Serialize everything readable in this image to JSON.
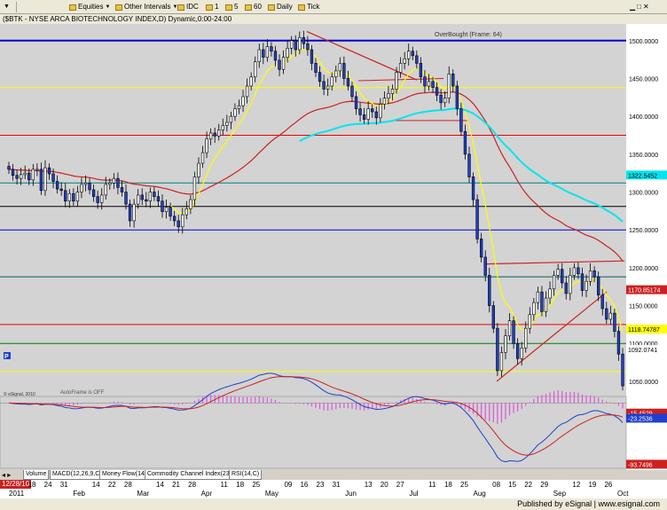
{
  "toolbar": {
    "equities": "Equities",
    "intervals": "Other Intervals",
    "idc": "IDC",
    "i1": "1",
    "i5": "5",
    "i60": "60",
    "daily": "Daily",
    "tick": "Tick"
  },
  "chart_title": "($BTK - NYSE ARCA BIOTECHNOLOGY INDEX,D) Dynamic,0:00-24:00",
  "overbought_label": "OverBought (Frame: 64)",
  "autoframe_label": "AutoFrame is OFF",
  "copyright": "© eSignal, 2010",
  "status": {
    "published": "Published by eSignal | www.esignal.com"
  },
  "tabs": [
    "Volume",
    "MACD(12,26,9,C)",
    "Money Flow(14)",
    "Commodity Channel Index(23,C)",
    "RSI(14,C)"
  ],
  "date_box": "12/28/10",
  "colors": {
    "background": "#d3d3d3",
    "candle_up": "#ffffff",
    "candle_down": "#1f3fcc",
    "ema_red": "#cc2020",
    "ema_yellow": "#ffff00",
    "ema_cyan": "#00e5ee",
    "macd_line": "#1f3fcc",
    "signal_line": "#cc2020",
    "hist": "#dd55dd"
  },
  "chart_data": [
    {
      "type": "candlestick",
      "title": "($BTK - NYSE ARCA BIOTECHNOLOGY INDEX,D) Dynamic,0:00-24:00",
      "ylim": [
        1030,
        1522
      ],
      "y_ticks": [
        1050,
        1100,
        1150,
        1200,
        1250,
        1300,
        1350,
        1400,
        1450,
        1500
      ],
      "tick_labels": [
        "1050.0000",
        "1100.0000",
        "1150.0000",
        "1200.0000",
        "1250.0000",
        "1300.0000",
        "1350.0000",
        "1400.0000",
        "1450.0000",
        "1500.0000"
      ],
      "horizontal_levels": [
        {
          "value": 1500,
          "color": "#0000cc"
        },
        {
          "value": 1438,
          "color": "#ffff00"
        },
        {
          "value": 1375,
          "color": "#ee0000"
        },
        {
          "value": 1312,
          "color": "#008080"
        },
        {
          "value": 1281,
          "color": "#000000"
        },
        {
          "value": 1250,
          "color": "#0000cc"
        },
        {
          "value": 1188,
          "color": "#006060"
        },
        {
          "value": 1125,
          "color": "#ee0000"
        },
        {
          "value": 1100,
          "color": "#008000"
        },
        {
          "value": 1063,
          "color": "#ffff00"
        }
      ],
      "axis_boxes": [
        {
          "label": "1322.5452",
          "value": 1322.5,
          "color": "#00e5ee"
        },
        {
          "label": "1170.85174",
          "value": 1171,
          "color": "#cc2020"
        },
        {
          "label": "1118.74787",
          "value": 1119,
          "color": "#ffff00"
        },
        {
          "label": "1092.0741",
          "value": 1092,
          "color": "#ffffff"
        }
      ],
      "x_categories": [
        "2011",
        "18",
        "24",
        "31",
        "Feb",
        "14",
        "22",
        "28",
        "Mar",
        "14",
        "21",
        "28",
        "Apr",
        "11",
        "18",
        "25",
        "May",
        "09",
        "16",
        "23",
        "31",
        "Jun",
        "13",
        "20",
        "27",
        "Jul",
        "11",
        "18",
        "25",
        "Aug",
        "08",
        "15",
        "22",
        "29",
        "Sep",
        "12",
        "19",
        "26",
        "Oct"
      ],
      "closes": [
        1330,
        1322,
        1318,
        1323,
        1325,
        1316,
        1330,
        1330,
        1302,
        1332,
        1324,
        1314,
        1304,
        1302,
        1288,
        1298,
        1288,
        1300,
        1310,
        1312,
        1303,
        1294,
        1286,
        1296,
        1310,
        1312,
        1318,
        1306,
        1300,
        1284,
        1262,
        1284,
        1296,
        1290,
        1288,
        1300,
        1294,
        1288,
        1274,
        1280,
        1268,
        1262,
        1254,
        1270,
        1278,
        1290,
        1320,
        1338,
        1352,
        1370,
        1378,
        1374,
        1382,
        1388,
        1392,
        1400,
        1410,
        1414,
        1426,
        1440,
        1452,
        1472,
        1488,
        1478,
        1492,
        1486,
        1474,
        1462,
        1478,
        1490,
        1500,
        1488,
        1504,
        1496,
        1488,
        1470,
        1458,
        1446,
        1436,
        1440,
        1452,
        1460,
        1470,
        1450,
        1440,
        1426,
        1410,
        1402,
        1396,
        1410,
        1406,
        1398,
        1416,
        1424,
        1430,
        1436,
        1458,
        1470,
        1476,
        1486,
        1480,
        1470,
        1452,
        1440,
        1446,
        1438,
        1428,
        1418,
        1424,
        1456,
        1440,
        1410,
        1380,
        1350,
        1320,
        1290,
        1238,
        1214,
        1190,
        1150,
        1120,
        1064,
        1088,
        1110,
        1130,
        1100,
        1080,
        1094,
        1120,
        1138,
        1154,
        1168,
        1142,
        1160,
        1172,
        1190,
        1198,
        1180,
        1166,
        1190,
        1200,
        1192,
        1170,
        1182,
        1196,
        1188,
        1164,
        1146,
        1132,
        1140,
        1116,
        1086,
        1044
      ],
      "overlays": [
        "yellow short EMA",
        "red long EMA",
        "cyan moving average",
        "red trend lines",
        "support/resistance levels"
      ]
    },
    {
      "type": "line",
      "title": "MACD(12,26,9,C)",
      "ylim": [
        -100,
        10
      ],
      "tick_labels": [
        "-15.4529",
        "-23.2536",
        "-93.7496"
      ],
      "series": [
        {
          "name": "MACD",
          "color": "#1f3fcc"
        },
        {
          "name": "Signal",
          "color": "#cc2020"
        },
        {
          "name": "Histogram",
          "color": "#dd55dd"
        }
      ]
    }
  ]
}
